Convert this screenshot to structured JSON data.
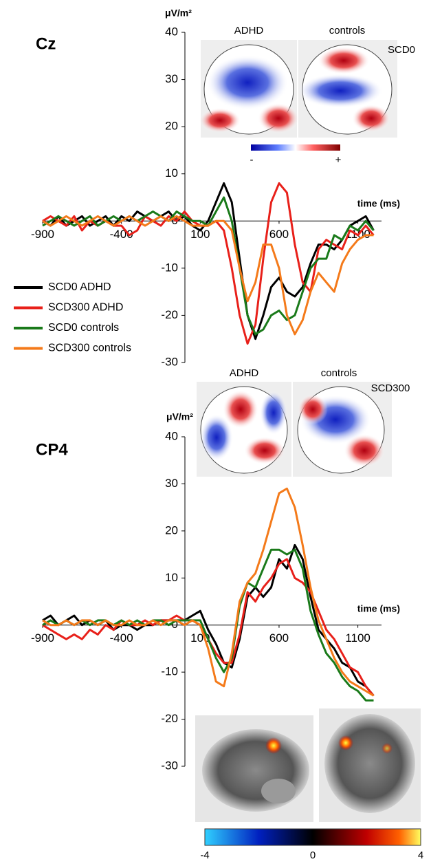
{
  "chart_data": [
    {
      "type": "line",
      "title": "Cz",
      "y_label": "μV/m²",
      "x_label": "time (ms)",
      "x": [
        -900,
        -850,
        -800,
        -750,
        -700,
        -650,
        -600,
        -550,
        -500,
        -450,
        -400,
        -350,
        -300,
        -250,
        -200,
        -150,
        -100,
        -50,
        0,
        50,
        100,
        150,
        200,
        250,
        300,
        350,
        400,
        450,
        500,
        550,
        600,
        650,
        700,
        750,
        800,
        850,
        900,
        950,
        1000,
        1050,
        1100,
        1150,
        1200
      ],
      "xlim": [
        -900,
        1250
      ],
      "ylim": [
        -30,
        40
      ],
      "xticks": [
        -900,
        -400,
        100,
        600,
        1100
      ],
      "yticks": [
        -30,
        -20,
        -10,
        0,
        10,
        20,
        30,
        40
      ],
      "series": [
        {
          "name": "SCD0 ADHD",
          "color": "#000000",
          "values": [
            0,
            -1,
            1,
            -1,
            0,
            1,
            -1,
            0,
            1,
            -1,
            1,
            0,
            2,
            1,
            0,
            1,
            2,
            0,
            1,
            -1,
            -2,
            0,
            4,
            8,
            4,
            -8,
            -20,
            -25,
            -20,
            -14,
            -12,
            -15,
            -16,
            -14,
            -9,
            -5,
            -5,
            -6,
            -4,
            -1,
            0,
            1,
            -2
          ]
        },
        {
          "name": "SCD300 ADHD",
          "color": "#e8201a",
          "values": [
            0,
            1,
            0,
            -1,
            1,
            -2,
            0,
            -1,
            0,
            -1,
            -1,
            -3,
            -2,
            1,
            0,
            -1,
            1,
            0,
            2,
            0,
            -1,
            -1,
            0,
            -2,
            -10,
            -20,
            -26,
            -22,
            -8,
            4,
            8,
            6,
            -5,
            -13,
            -15,
            -6,
            -4,
            -5,
            -6,
            -2,
            -3,
            -1,
            -3
          ]
        },
        {
          "name": "SCD0 controls",
          "color": "#1a7a1a",
          "values": [
            -1,
            0,
            1,
            0,
            -1,
            0,
            1,
            -1,
            0,
            1,
            0,
            1,
            0,
            1,
            2,
            1,
            0,
            2,
            1,
            0,
            0,
            -1,
            2,
            5,
            0,
            -10,
            -20,
            -24,
            -23,
            -20,
            -19,
            -21,
            -20,
            -15,
            -10,
            -8,
            -8,
            -3,
            -4,
            -1,
            -2,
            0,
            -2
          ]
        },
        {
          "name": "SCD300 controls",
          "color": "#f47a1a",
          "values": [
            0,
            -1,
            0,
            1,
            0,
            -1,
            0,
            1,
            0,
            -1,
            0,
            1,
            0,
            -1,
            0,
            1,
            0,
            1,
            0,
            -1,
            -1,
            -1,
            0,
            0,
            -2,
            -10,
            -17,
            -13,
            -5,
            -5,
            -10,
            -20,
            -24,
            -21,
            -15,
            -11,
            -13,
            -15,
            -9,
            -6,
            -4,
            -3,
            -3
          ]
        }
      ]
    },
    {
      "type": "line",
      "title": "CP4",
      "y_label": "μV/m²",
      "x_label": "time (ms)",
      "x": [
        -900,
        -850,
        -800,
        -750,
        -700,
        -650,
        -600,
        -550,
        -500,
        -450,
        -400,
        -350,
        -300,
        -250,
        -200,
        -150,
        -100,
        -50,
        0,
        50,
        100,
        150,
        200,
        250,
        300,
        350,
        400,
        450,
        500,
        550,
        600,
        650,
        700,
        750,
        800,
        850,
        900,
        950,
        1000,
        1050,
        1100,
        1150,
        1200
      ],
      "xlim": [
        -900,
        1250
      ],
      "ylim": [
        -30,
        40
      ],
      "xticks": [
        -900,
        -400,
        100,
        600,
        1100
      ],
      "yticks": [
        -30,
        -20,
        -10,
        0,
        10,
        20,
        30,
        40
      ],
      "series": [
        {
          "color": "#000000",
          "values": [
            1,
            2,
            0,
            1,
            2,
            0,
            1,
            0,
            1,
            -1,
            0,
            0,
            -1,
            0,
            0,
            1,
            1,
            1,
            1,
            2,
            3,
            -1,
            -4,
            -8,
            -9,
            -3,
            6,
            8,
            6,
            8,
            14,
            12,
            17,
            14,
            6,
            -1,
            -3,
            -5,
            -8,
            -9,
            -12,
            -13,
            -15
          ]
        },
        {
          "color": "#e8201a",
          "values": [
            0,
            -1,
            -2,
            -3,
            -2,
            -3,
            -1,
            -2,
            0,
            -1,
            1,
            0,
            0,
            1,
            0,
            1,
            1,
            2,
            1,
            1,
            0,
            -3,
            -6,
            -8,
            -8,
            -2,
            7,
            5,
            8,
            10,
            13,
            14,
            10,
            9,
            7,
            3,
            -1,
            -3,
            -6,
            -9,
            -10,
            -13,
            -15
          ]
        },
        {
          "color": "#1a7a1a",
          "values": [
            0,
            1,
            0,
            1,
            0,
            1,
            0,
            1,
            1,
            0,
            1,
            0,
            1,
            0,
            1,
            1,
            0,
            1,
            1,
            1,
            1,
            -3,
            -7,
            -10,
            -7,
            4,
            9,
            8,
            12,
            16,
            16,
            15,
            16,
            12,
            3,
            -2,
            -6,
            -8,
            -11,
            -13,
            -14,
            -16,
            -16
          ]
        },
        {
          "color": "#f47a1a",
          "values": [
            1,
            0,
            0,
            1,
            0,
            1,
            1,
            0,
            1,
            0,
            0,
            1,
            0,
            0,
            1,
            0,
            1,
            1,
            0,
            1,
            0,
            -5,
            -12,
            -13,
            -6,
            5,
            9,
            11,
            16,
            22,
            28,
            29,
            25,
            17,
            8,
            1,
            -3,
            -7,
            -10,
            -12,
            -13,
            -14,
            -15
          ]
        }
      ]
    }
  ],
  "topomaps": [
    {
      "groups": [
        "ADHD",
        "controls"
      ],
      "condition": "SCD0",
      "scale": [
        "-",
        "+"
      ]
    },
    {
      "groups": [
        "ADHD",
        "controls"
      ],
      "condition": "SCD300"
    }
  ],
  "brain_colorbar": {
    "ticks": [
      -4,
      0,
      4
    ]
  }
}
